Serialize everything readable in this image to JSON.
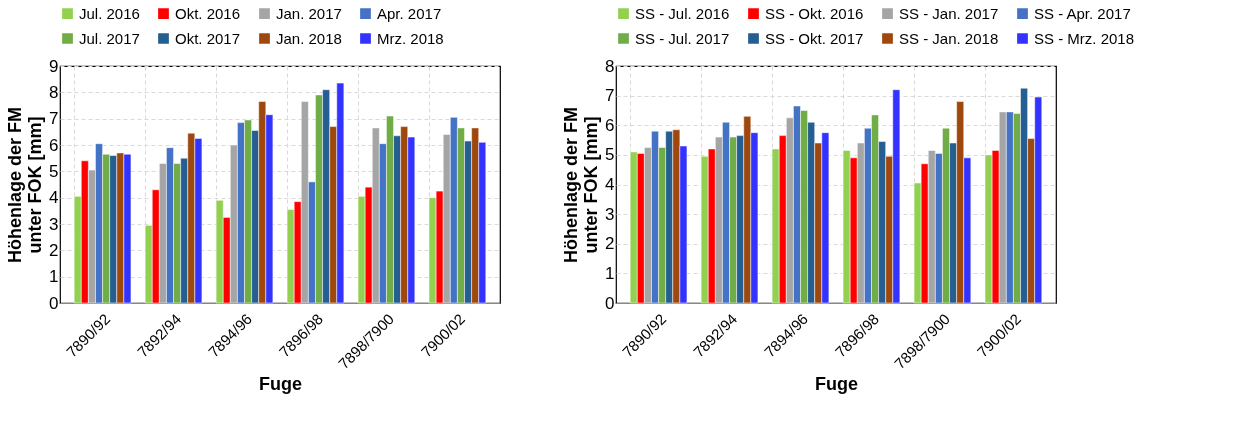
{
  "chart_data": [
    {
      "type": "bar",
      "xlabel": "Fuge",
      "ylabel": "Höhenlage der FM unter FOK [mm]",
      "categories": [
        "7890/92",
        "7892/94",
        "7894/96",
        "7896/98",
        "7898/7900",
        "7900/02"
      ],
      "ylim": [
        0,
        9
      ],
      "yticks": [
        0,
        1,
        2,
        3,
        4,
        5,
        6,
        7,
        8,
        9
      ],
      "grid": true,
      "legend": "top",
      "series": [
        {
          "name": "Jul. 2016",
          "color": "#92d050",
          "values": [
            4.05,
            2.95,
            3.9,
            3.55,
            4.05,
            4.0
          ]
        },
        {
          "name": "Okt. 2016",
          "color": "#ff0000",
          "values": [
            5.4,
            4.3,
            3.25,
            3.85,
            4.4,
            4.25
          ]
        },
        {
          "name": "Jan. 2017",
          "color": "#a5a5a5",
          "values": [
            5.05,
            5.3,
            6.0,
            7.65,
            6.65,
            6.4
          ]
        },
        {
          "name": "Apr. 2017",
          "color": "#4472c4",
          "values": [
            6.05,
            5.9,
            6.85,
            4.6,
            6.05,
            7.05
          ]
        },
        {
          "name": "Jul. 2017",
          "color": "#70ad47",
          "values": [
            5.65,
            5.3,
            6.95,
            7.9,
            7.1,
            6.65
          ]
        },
        {
          "name": "Okt. 2017",
          "color": "#255e91",
          "values": [
            5.6,
            5.5,
            6.55,
            8.1,
            6.35,
            6.15
          ]
        },
        {
          "name": "Jan. 2018",
          "color": "#9e480e",
          "values": [
            5.7,
            6.45,
            7.65,
            6.7,
            6.7,
            6.65
          ]
        },
        {
          "name": "Mrz. 2018",
          "color": "#3333ff",
          "values": [
            5.65,
            6.25,
            7.15,
            8.35,
            6.3,
            6.1
          ]
        }
      ]
    },
    {
      "type": "bar",
      "xlabel": "Fuge",
      "ylabel": "Höhenlage der FM unter FOK [mm]",
      "categories": [
        "7890/92",
        "7892/94",
        "7894/96",
        "7896/98",
        "7898/7900",
        "7900/02"
      ],
      "ylim": [
        0,
        8
      ],
      "yticks": [
        0,
        1,
        2,
        3,
        4,
        5,
        6,
        7,
        8
      ],
      "grid": true,
      "legend": "top",
      "series": [
        {
          "name": "SS - Jul. 2016",
          "color": "#92d050",
          "values": [
            5.1,
            4.95,
            5.2,
            5.15,
            4.05,
            5.0
          ]
        },
        {
          "name": "SS - Okt. 2016",
          "color": "#ff0000",
          "values": [
            5.05,
            5.2,
            5.65,
            4.9,
            4.7,
            5.15
          ]
        },
        {
          "name": "SS - Jan. 2017",
          "color": "#a5a5a5",
          "values": [
            5.25,
            5.6,
            6.25,
            5.4,
            5.15,
            6.45
          ]
        },
        {
          "name": "SS - Apr. 2017",
          "color": "#4472c4",
          "values": [
            5.8,
            6.1,
            6.65,
            5.9,
            5.05,
            6.45
          ]
        },
        {
          "name": "SS - Jul. 2017",
          "color": "#70ad47",
          "values": [
            5.25,
            5.6,
            6.5,
            6.35,
            5.9,
            6.4
          ]
        },
        {
          "name": "SS - Okt. 2017",
          "color": "#255e91",
          "values": [
            5.8,
            5.65,
            6.1,
            5.45,
            5.4,
            7.25
          ]
        },
        {
          "name": "SS - Jan. 2018",
          "color": "#9e480e",
          "values": [
            5.85,
            6.3,
            5.4,
            4.95,
            6.8,
            5.55
          ]
        },
        {
          "name": "SS - Mrz. 2018",
          "color": "#3333ff",
          "values": [
            5.3,
            5.75,
            5.75,
            7.2,
            4.9,
            6.95
          ]
        }
      ]
    }
  ]
}
